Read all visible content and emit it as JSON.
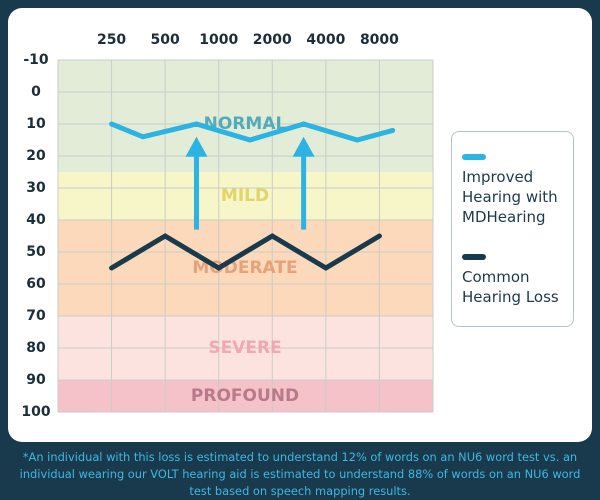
{
  "chart_data": {
    "type": "line",
    "title": "",
    "xlabel": "",
    "ylabel": "",
    "x_ticks": [
      "250",
      "500",
      "1000",
      "2000",
      "4000",
      "8000"
    ],
    "y_ticks": [
      "-10",
      "0",
      "10",
      "20",
      "30",
      "40",
      "50",
      "60",
      "70",
      "80",
      "90",
      "100"
    ],
    "ylim": [
      -10,
      100
    ],
    "y_inverted": true,
    "x_axis_position": "top",
    "grid": true,
    "legend_position": "right",
    "bands": [
      {
        "label": "NORMAL",
        "from": -10,
        "to": 25,
        "color": "#e3ecd7",
        "label_color": "#53abba"
      },
      {
        "label": "MILD",
        "from": 25,
        "to": 40,
        "color": "#f7f6c8",
        "label_color": "#e0d46b"
      },
      {
        "label": "MODERATE",
        "from": 40,
        "to": 70,
        "color": "#fcd9bb",
        "label_color": "#e6a37a"
      },
      {
        "label": "SEVERE",
        "from": 70,
        "to": 90,
        "color": "#fde3df",
        "label_color": "#f0a8b3"
      },
      {
        "label": "PROFOUND",
        "from": 90,
        "to": 100,
        "color": "#f6c2c9",
        "label_color": "#b87a8a"
      }
    ],
    "series": [
      {
        "name": "Improved Hearing with MDHearing",
        "color": "#2bb3e3",
        "x": [
          250,
          375,
          750,
          1500,
          3000,
          6000,
          9500
        ],
        "y": [
          10,
          14,
          10,
          15,
          10,
          15,
          12
        ]
      },
      {
        "name": "Common Hearing Loss",
        "color": "#183a4c",
        "x": [
          250,
          500,
          1000,
          2000,
          4000,
          8000
        ],
        "y": [
          55,
          45,
          55,
          45,
          55,
          45
        ]
      }
    ],
    "arrows": [
      {
        "x": 750,
        "from": 43,
        "to": 14,
        "color": "#2bb3e3"
      },
      {
        "x": 3000,
        "from": 43,
        "to": 14,
        "color": "#2bb3e3"
      }
    ]
  },
  "legend": [
    {
      "label": "Improved Hearing with MDHearing",
      "color": "#2bb3e3"
    },
    {
      "label": "Common Hearing Loss",
      "color": "#183a4c"
    }
  ],
  "footnote": "*An individual with this loss is estimated to understand 12% of words on an NU6 word test vs. an individual wearing our VOLT hearing aid is estimated to understand 88% of words on an NU6 word test based on speech mapping results."
}
